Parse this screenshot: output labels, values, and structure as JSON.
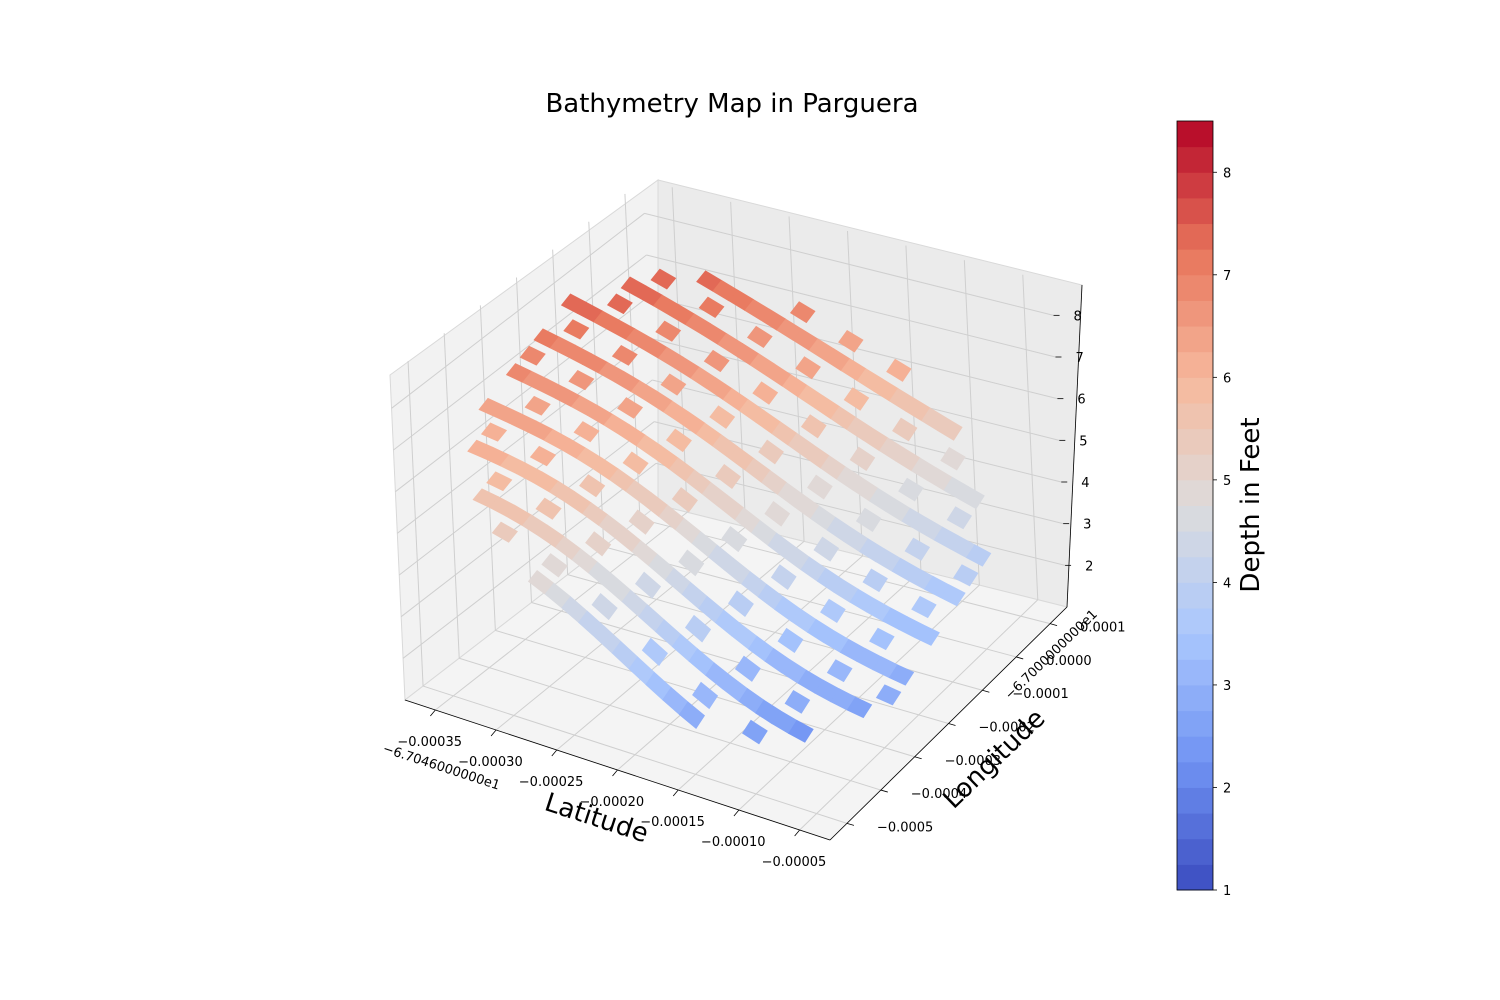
{
  "chart_data": {
    "type": "surface3d",
    "title": "Bathymetry Map in Parguera",
    "xlabel": "Latitude",
    "ylabel": "Longitude",
    "colorbar_label": "Depth in Feet",
    "x_offset_text": "−6.7046000000e1",
    "y_offset_text": "−6.7000000000e1",
    "x_ticks": [
      "−0.00035",
      "−0.00030",
      "−0.00025",
      "−0.00020",
      "−0.00015",
      "−0.00010",
      "−0.00005"
    ],
    "y_ticks": [
      "−0.0005",
      "−0.0004",
      "−0.0003",
      "−0.0002",
      "−0.0001",
      "0.0000",
      "0.0001"
    ],
    "z_ticks": [
      "2",
      "3",
      "4",
      "5",
      "6",
      "7",
      "8"
    ],
    "colorbar_ticks": [
      "1",
      "2",
      "3",
      "4",
      "5",
      "6",
      "7",
      "8"
    ],
    "z_range": [
      1.0,
      8.5
    ],
    "colormap": "coolwarm",
    "colormap_stops": [
      "#3b4cc0",
      "#7093f3",
      "#aac7fd",
      "#dddcdc",
      "#f7b89c",
      "#e7745b",
      "#b40426"
    ],
    "grid": true,
    "surface_note": "Filled contour-banded surface; depth decreases from ~8.5 at the low-latitude / high-longitude corner to ~2 near the high-latitude corner"
  }
}
